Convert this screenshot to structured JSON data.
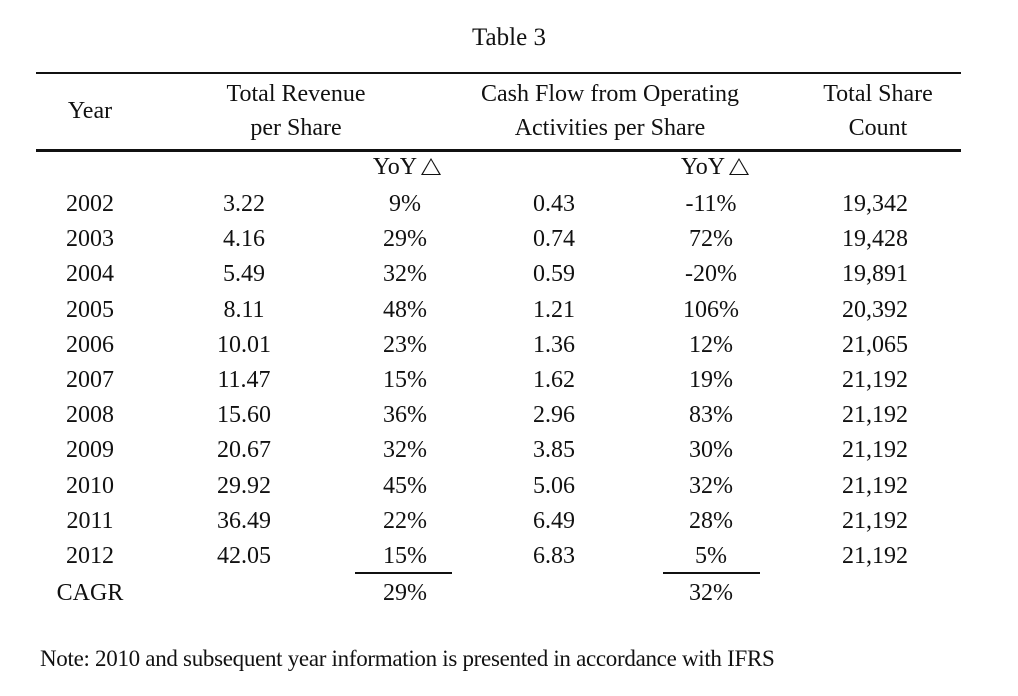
{
  "title": "Table 3",
  "headers": {
    "year": "Year",
    "revenue_line1": "Total Revenue",
    "revenue_line2": "per Share",
    "cashflow_line1": "Cash Flow from Operating",
    "cashflow_line2": "Activities per Share",
    "shares_line1": "Total Share",
    "shares_line2": "Count",
    "yoy_label": "YoY"
  },
  "rows": [
    {
      "year": "2002",
      "revenue": "3.22",
      "revenue_yoy": "9%",
      "cashflow": "0.43",
      "cashflow_yoy": "-11%",
      "shares": "19,342"
    },
    {
      "year": "2003",
      "revenue": "4.16",
      "revenue_yoy": "29%",
      "cashflow": "0.74",
      "cashflow_yoy": "72%",
      "shares": "19,428"
    },
    {
      "year": "2004",
      "revenue": "5.49",
      "revenue_yoy": "32%",
      "cashflow": "0.59",
      "cashflow_yoy": "-20%",
      "shares": "19,891"
    },
    {
      "year": "2005",
      "revenue": "8.11",
      "revenue_yoy": "48%",
      "cashflow": "1.21",
      "cashflow_yoy": "106%",
      "shares": "20,392"
    },
    {
      "year": "2006",
      "revenue": "10.01",
      "revenue_yoy": "23%",
      "cashflow": "1.36",
      "cashflow_yoy": "12%",
      "shares": "21,065"
    },
    {
      "year": "2007",
      "revenue": "11.47",
      "revenue_yoy": "15%",
      "cashflow": "1.62",
      "cashflow_yoy": "19%",
      "shares": "21,192"
    },
    {
      "year": "2008",
      "revenue": "15.60",
      "revenue_yoy": "36%",
      "cashflow": "2.96",
      "cashflow_yoy": "83%",
      "shares": "21,192"
    },
    {
      "year": "2009",
      "revenue": "20.67",
      "revenue_yoy": "32%",
      "cashflow": "3.85",
      "cashflow_yoy": "30%",
      "shares": "21,192"
    },
    {
      "year": "2010",
      "revenue": "29.92",
      "revenue_yoy": "45%",
      "cashflow": "5.06",
      "cashflow_yoy": "32%",
      "shares": "21,192"
    },
    {
      "year": "2011",
      "revenue": "36.49",
      "revenue_yoy": "22%",
      "cashflow": "6.49",
      "cashflow_yoy": "28%",
      "shares": "21,192"
    },
    {
      "year": "2012",
      "revenue": "42.05",
      "revenue_yoy": "15%",
      "cashflow": "6.83",
      "cashflow_yoy": "5%",
      "shares": "21,192"
    }
  ],
  "cagr": {
    "label": "CAGR",
    "revenue": "29%",
    "cashflow": "32%"
  },
  "note": "Note: 2010 and subsequent year information is presented in accordance with IFRS"
}
